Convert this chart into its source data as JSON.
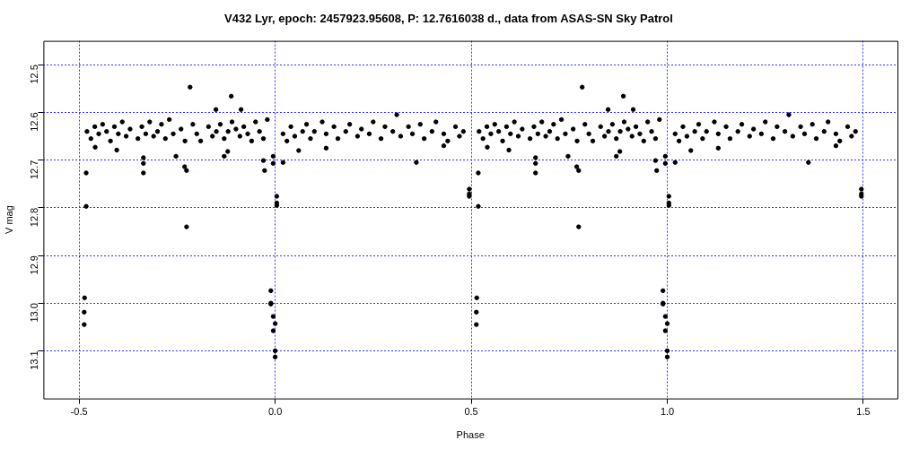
{
  "chart_data": {
    "type": "scatter",
    "title": "V432 Lyr, epoch: 2457923.95608, P: 12.7616038 d., data from ASAS-SN Sky Patrol",
    "xlabel": "Phase",
    "ylabel": "V mag",
    "xlim": [
      -0.591,
      1.587
    ],
    "ylim": [
      13.2,
      12.45
    ],
    "xticks": [
      -0.5,
      {
        "value": 0,
        "label": "0.0"
      },
      0.5,
      {
        "value": 1,
        "label": "1.0"
      },
      1.5
    ],
    "yticks": [
      12.5,
      12.6,
      12.7,
      12.8,
      12.9,
      {
        "value": 13,
        "label": "13.0"
      },
      13.1
    ],
    "grid": true,
    "marker": "circle",
    "legend": false,
    "series": [
      {
        "color": "#000000",
        "x": [
          -0.48,
          -0.47,
          -0.46,
          -0.45,
          -0.44,
          -0.43,
          -0.42,
          -0.41,
          -0.4,
          -0.39,
          -0.38,
          -0.37,
          -0.35,
          -0.34,
          -0.33,
          -0.32,
          -0.31,
          -0.3,
          -0.29,
          -0.28,
          -0.27,
          -0.26,
          -0.24,
          -0.23,
          -0.21,
          -0.2,
          -0.19,
          -0.17,
          -0.16,
          -0.15,
          -0.14,
          -0.13,
          -0.12,
          -0.11,
          -0.1,
          -0.09,
          -0.08,
          -0.07,
          -0.06,
          -0.05,
          -0.04,
          -0.03,
          -0.02,
          0.02,
          0.03,
          0.04,
          0.05,
          0.07,
          0.08,
          0.09,
          0.1,
          0.12,
          0.13,
          0.15,
          0.16,
          0.18,
          0.19,
          0.21,
          0.22,
          0.24,
          0.25,
          0.27,
          0.28,
          0.3,
          0.31,
          0.32,
          0.34,
          0.35,
          0.37,
          0.38,
          0.4,
          0.41,
          0.43,
          0.44,
          0.46,
          0.47,
          0.48,
          0.02,
          0.06,
          0.13,
          0.36,
          0.43,
          -0.486,
          -0.487,
          -0.487,
          -0.482,
          -0.482,
          -0.459,
          -0.404,
          -0.336,
          -0.336,
          -0.336,
          -0.253,
          -0.231,
          -0.226,
          -0.226,
          -0.217,
          -0.151,
          -0.13,
          -0.121,
          -0.112,
          -0.087,
          -0.03,
          -0.027,
          -0.005,
          -0.005,
          0.004,
          0.004,
          0.004,
          -0.011,
          -0.011,
          -0.011,
          -0.005,
          0,
          -0.005,
          0,
          0,
          0.495,
          0.495,
          0.495
        ],
        "values": [
          12.64,
          12.655,
          12.63,
          12.645,
          12.625,
          12.64,
          12.66,
          12.63,
          12.645,
          12.62,
          12.65,
          12.635,
          12.655,
          12.63,
          12.645,
          12.62,
          12.65,
          12.64,
          12.625,
          12.655,
          12.615,
          12.645,
          12.635,
          12.66,
          12.625,
          12.645,
          12.66,
          12.63,
          12.65,
          12.64,
          12.625,
          12.655,
          12.64,
          12.62,
          12.635,
          12.65,
          12.63,
          12.645,
          12.66,
          12.62,
          12.64,
          12.655,
          12.615,
          12.645,
          12.66,
          12.63,
          12.65,
          12.64,
          12.625,
          12.655,
          12.64,
          12.62,
          12.645,
          12.63,
          12.655,
          12.64,
          12.625,
          12.65,
          12.635,
          12.645,
          12.62,
          12.655,
          12.63,
          12.64,
          12.605,
          12.65,
          12.63,
          12.645,
          12.625,
          12.655,
          12.64,
          12.62,
          12.645,
          12.66,
          12.63,
          12.65,
          12.64,
          12.705,
          12.68,
          12.675,
          12.705,
          12.67,
          12.989,
          13.019,
          13.045,
          12.797,
          12.727,
          12.673,
          12.679,
          12.695,
          12.707,
          12.727,
          12.692,
          12.714,
          12.722,
          12.84,
          12.547,
          12.594,
          12.692,
          12.682,
          12.566,
          12.594,
          12.701,
          12.722,
          12.692,
          12.707,
          12.776,
          12.79,
          12.795,
          12.974,
          13,
          13.002,
          13.028,
          13.043,
          13.058,
          13.1,
          13.113,
          12.761,
          12.771,
          12.776
        ]
      },
      {
        "color": "#000000",
        "x": [
          0.52,
          0.53,
          0.54,
          0.55,
          0.56,
          0.57,
          0.58,
          0.59,
          0.6,
          0.61,
          0.62,
          0.63,
          0.65,
          0.66,
          0.67,
          0.68,
          0.69,
          0.7,
          0.71,
          0.72,
          0.73,
          0.74,
          0.76,
          0.77,
          0.79,
          0.8,
          0.81,
          0.83,
          0.84,
          0.85,
          0.86,
          0.87,
          0.88,
          0.89,
          0.9,
          0.91,
          0.92,
          0.93,
          0.94,
          0.95,
          0.96,
          0.97,
          0.98,
          1.02,
          1.03,
          1.04,
          1.05,
          1.07,
          1.08,
          1.09,
          1.1,
          1.12,
          1.13,
          1.15,
          1.16,
          1.18,
          1.19,
          1.21,
          1.22,
          1.24,
          1.25,
          1.27,
          1.28,
          1.3,
          1.31,
          1.32,
          1.34,
          1.35,
          1.37,
          1.38,
          1.4,
          1.41,
          1.43,
          1.44,
          1.46,
          1.47,
          1.48,
          1.02,
          1.06,
          1.13,
          1.36,
          1.43,
          0.514,
          0.513,
          0.513,
          0.518,
          0.518,
          0.541,
          0.596,
          0.664,
          0.664,
          0.664,
          0.747,
          0.769,
          0.774,
          0.774,
          0.783,
          0.849,
          0.87,
          0.879,
          0.888,
          0.913,
          0.97,
          0.973,
          0.995,
          0.995,
          1.004,
          1.004,
          1.004,
          0.989,
          0.989,
          0.989,
          0.995,
          1,
          0.995,
          1,
          1,
          1.495,
          1.495,
          1.495
        ],
        "values": [
          12.64,
          12.655,
          12.63,
          12.645,
          12.625,
          12.64,
          12.66,
          12.63,
          12.645,
          12.62,
          12.65,
          12.635,
          12.655,
          12.63,
          12.645,
          12.62,
          12.65,
          12.64,
          12.625,
          12.655,
          12.615,
          12.645,
          12.635,
          12.66,
          12.625,
          12.645,
          12.66,
          12.63,
          12.65,
          12.64,
          12.625,
          12.655,
          12.64,
          12.62,
          12.635,
          12.65,
          12.63,
          12.645,
          12.66,
          12.62,
          12.64,
          12.655,
          12.615,
          12.645,
          12.66,
          12.63,
          12.65,
          12.64,
          12.625,
          12.655,
          12.64,
          12.62,
          12.645,
          12.63,
          12.655,
          12.64,
          12.625,
          12.65,
          12.635,
          12.645,
          12.62,
          12.655,
          12.63,
          12.64,
          12.605,
          12.65,
          12.63,
          12.645,
          12.625,
          12.655,
          12.64,
          12.62,
          12.645,
          12.66,
          12.63,
          12.65,
          12.64,
          12.705,
          12.68,
          12.675,
          12.705,
          12.67,
          12.989,
          13.019,
          13.045,
          12.797,
          12.727,
          12.673,
          12.679,
          12.695,
          12.707,
          12.727,
          12.692,
          12.714,
          12.722,
          12.84,
          12.547,
          12.594,
          12.692,
          12.682,
          12.566,
          12.594,
          12.701,
          12.722,
          12.692,
          12.707,
          12.776,
          12.79,
          12.795,
          12.974,
          13,
          13.002,
          13.028,
          13.043,
          13.058,
          13.1,
          13.113,
          12.761,
          12.771,
          12.776
        ]
      }
    ]
  }
}
